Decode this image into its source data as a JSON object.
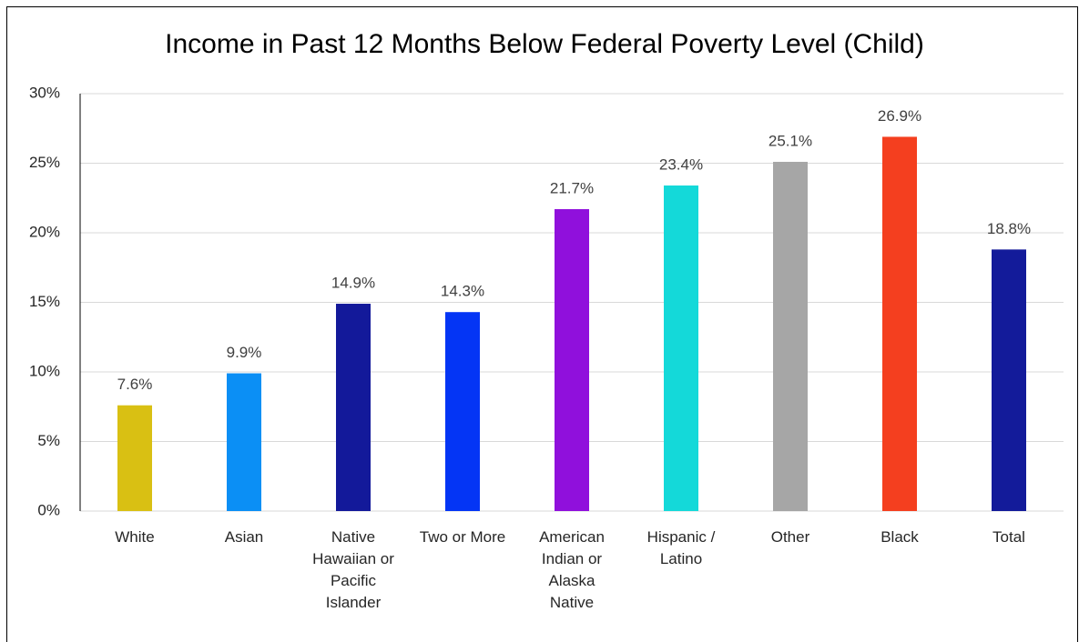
{
  "chart_data": {
    "type": "bar",
    "title": "Income in Past 12 Months Below Federal Poverty Level (Child)",
    "categories": [
      "White",
      "Asian",
      "Native Hawaiian or Pacific Islander",
      "Two or More",
      "American Indian or Alaska Native",
      "Hispanic / Latino",
      "Other",
      "Black",
      "Total"
    ],
    "values": [
      7.6,
      9.9,
      14.9,
      14.3,
      21.7,
      23.4,
      25.1,
      26.9,
      18.8
    ],
    "value_labels": [
      "7.6%",
      "9.9%",
      "14.9%",
      "14.3%",
      "21.7%",
      "23.4%",
      "25.1%",
      "26.9%",
      "18.8%"
    ],
    "colors": [
      "#d9c013",
      "#0b8ff5",
      "#13199a",
      "#0435f5",
      "#9010dc",
      "#14d9d9",
      "#a6a6a6",
      "#f43f1f",
      "#131b9a"
    ],
    "ylim": [
      0,
      30
    ],
    "yticks": [
      {
        "value": 0,
        "label": "0%"
      },
      {
        "value": 5,
        "label": "5%"
      },
      {
        "value": 10,
        "label": "10%"
      },
      {
        "value": 15,
        "label": "15%"
      },
      {
        "value": 20,
        "label": "20%"
      },
      {
        "value": 25,
        "label": "25%"
      },
      {
        "value": 30,
        "label": "30%"
      }
    ],
    "grid": true
  }
}
